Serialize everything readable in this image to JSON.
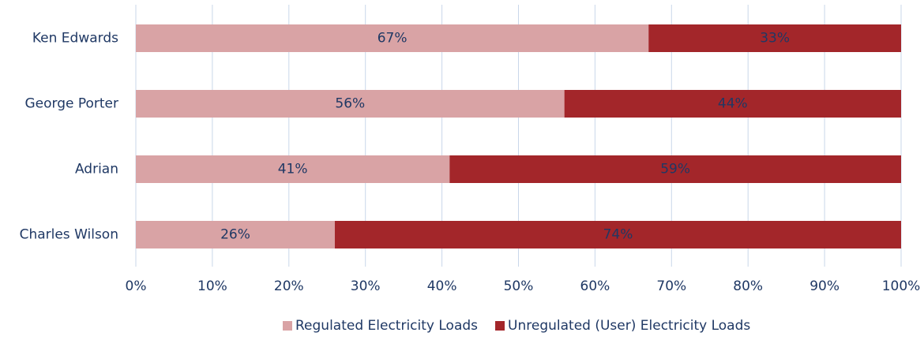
{
  "chart_data": {
    "type": "bar",
    "orientation": "horizontal",
    "stacked": true,
    "categories": [
      "Ken Edwards",
      "George Porter",
      "Adrian",
      "Charles Wilson"
    ],
    "series": [
      {
        "name": "Regulated Electricity Loads",
        "color": "#d9a3a5",
        "values": [
          67,
          56,
          41,
          26
        ],
        "value_labels": [
          "67%",
          "56%",
          "41%",
          "26%"
        ]
      },
      {
        "name": "Unregulated (User) Electricity Loads",
        "color": "#a3262a",
        "values": [
          33,
          44,
          59,
          74
        ],
        "value_labels": [
          "33%",
          "44%",
          "59%",
          "74%"
        ]
      }
    ],
    "xlim": [
      0,
      100
    ],
    "xticks": [
      {
        "value": 0,
        "label": "0%"
      },
      {
        "value": 10,
        "label": "10%"
      },
      {
        "value": 20,
        "label": "20%"
      },
      {
        "value": 30,
        "label": "30%"
      },
      {
        "value": 40,
        "label": "40%"
      },
      {
        "value": 50,
        "label": "50%"
      },
      {
        "value": 60,
        "label": "60%"
      },
      {
        "value": 70,
        "label": "70%"
      },
      {
        "value": 80,
        "label": "80%"
      },
      {
        "value": 90,
        "label": "90%"
      },
      {
        "value": 100,
        "label": "100%"
      }
    ],
    "grid": true,
    "legend": "bottom"
  }
}
